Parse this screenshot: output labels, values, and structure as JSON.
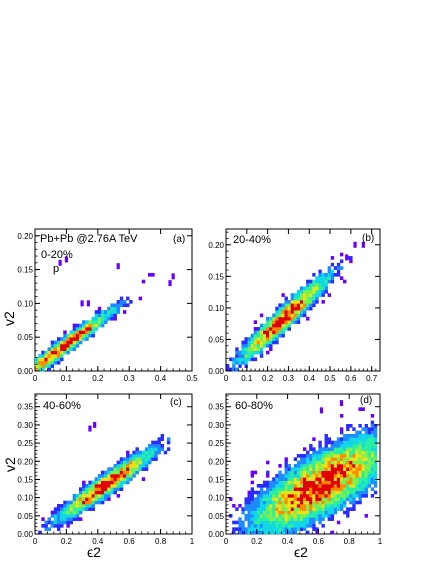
{
  "figure": {
    "collision_label": "Pb+Pb @2.76A TeV",
    "particle_label": "p",
    "shared_xlabel": "ϵ2",
    "shared_ylabel": "v2"
  },
  "colors": {
    "scale": [
      "#6a00ff",
      "#2a2cff",
      "#1e8cff",
      "#12d7e6",
      "#29f0a0",
      "#7cf04c",
      "#e8e21a",
      "#ff8a00",
      "#e00000"
    ]
  },
  "chart_data": [
    {
      "type": "heatmap",
      "panel": "a",
      "panel_label": "(a)",
      "centrality": "0-20%",
      "xlim": [
        0,
        0.5
      ],
      "ylim": [
        0,
        0.21
      ],
      "xticks": [
        0,
        0.1,
        0.2,
        0.3,
        0.4,
        0.5
      ],
      "xtick_labels": [
        "0",
        "0.1",
        "0.2",
        "0.3",
        "0.4",
        "0.5"
      ],
      "yticks": [
        0,
        0.05,
        0.1,
        0.15,
        0.2
      ],
      "ytick_labels": [
        "0.00",
        "0.05",
        "0.10",
        "0.15",
        "0.20"
      ],
      "density": {
        "slope": 0.34,
        "intercept": 0.005,
        "sigma": 0.009,
        "x_center": 0.09,
        "x_width": 0.09,
        "x_range": [
          0.0,
          0.45
        ],
        "bins_x": 50,
        "bins_y": 42
      },
      "outliers": [
        [
          0.1,
          0.165
        ],
        [
          0.08,
          0.16
        ],
        [
          0.265,
          0.155
        ],
        [
          0.44,
          0.14
        ],
        [
          0.43,
          0.13
        ],
        [
          0.15,
          0.1
        ],
        [
          0.17,
          0.1
        ]
      ],
      "ylabel": "v2",
      "xlabel": ""
    },
    {
      "type": "heatmap",
      "panel": "b",
      "panel_label": "(b)",
      "centrality": "20-40%",
      "xlim": [
        0,
        0.74
      ],
      "ylim": [
        0,
        0.225
      ],
      "xticks": [
        0,
        0.1,
        0.2,
        0.3,
        0.4,
        0.5,
        0.6,
        0.7
      ],
      "xtick_labels": [
        "0",
        "0.1",
        "0.2",
        "0.3",
        "0.4",
        "0.5",
        "0.6",
        "0.7"
      ],
      "yticks": [
        0,
        0.05,
        0.1,
        0.15,
        0.2
      ],
      "ytick_labels": [
        "0.00",
        "0.05",
        "0.10",
        "0.15",
        "0.20"
      ],
      "density": {
        "slope": 0.3,
        "intercept": 0.0,
        "sigma": 0.014,
        "x_center": 0.28,
        "x_width": 0.12,
        "x_range": [
          0.0,
          0.68
        ],
        "bins_x": 50,
        "bins_y": 42
      },
      "outliers": [
        [
          0.66,
          0.2
        ],
        [
          0.62,
          0.2
        ],
        [
          0.58,
          0.18
        ]
      ],
      "ylabel": "",
      "xlabel": ""
    },
    {
      "type": "heatmap",
      "panel": "c",
      "panel_label": "(c)",
      "centrality": "40-60%",
      "xlim": [
        0,
        1.0
      ],
      "ylim": [
        0,
        0.385
      ],
      "xticks": [
        0,
        0.2,
        0.4,
        0.6,
        0.8,
        1.0
      ],
      "xtick_labels": [
        "0",
        "0.2",
        "0.4",
        "0.6",
        "0.8",
        "1"
      ],
      "yticks": [
        0,
        0.05,
        0.1,
        0.15,
        0.2,
        0.25,
        0.3,
        0.35
      ],
      "ytick_labels": [
        "0.00",
        "0.05",
        "0.10",
        "0.15",
        "0.20",
        "0.25",
        "0.30",
        "0.35"
      ],
      "density": {
        "slope": 0.3,
        "intercept": 0.0,
        "sigma": 0.022,
        "x_center": 0.45,
        "x_width": 0.17,
        "x_range": [
          0.02,
          0.86
        ],
        "bins_x": 50,
        "bins_y": 42
      },
      "outliers": [
        [
          0.38,
          0.3
        ],
        [
          0.35,
          0.29
        ]
      ],
      "ylabel": "v2",
      "xlabel": "ϵ2"
    },
    {
      "type": "heatmap",
      "panel": "d",
      "panel_label": "(d)",
      "centrality": "60-80%",
      "xlim": [
        0,
        1.0
      ],
      "ylim": [
        0,
        0.385
      ],
      "xticks": [
        0,
        0.2,
        0.4,
        0.6,
        0.8,
        1.0
      ],
      "xtick_labels": [
        "0",
        "0.2",
        "0.4",
        "0.6",
        "0.8",
        "1"
      ],
      "yticks": [
        0,
        0.05,
        0.1,
        0.15,
        0.2,
        0.25,
        0.3,
        0.35
      ],
      "ytick_labels": [
        "0.00",
        "0.05",
        "0.10",
        "0.15",
        "0.20",
        "0.25",
        "0.30",
        "0.35"
      ],
      "density": {
        "slope": 0.22,
        "intercept": 0.0,
        "sigma": 0.06,
        "x_center": 0.62,
        "x_width": 0.24,
        "x_range": [
          0.02,
          0.98
        ],
        "bins_x": 50,
        "bins_y": 42
      },
      "outliers": [
        [
          0.75,
          0.36
        ],
        [
          0.62,
          0.34
        ]
      ],
      "ylabel": "",
      "xlabel": "ϵ2"
    }
  ]
}
